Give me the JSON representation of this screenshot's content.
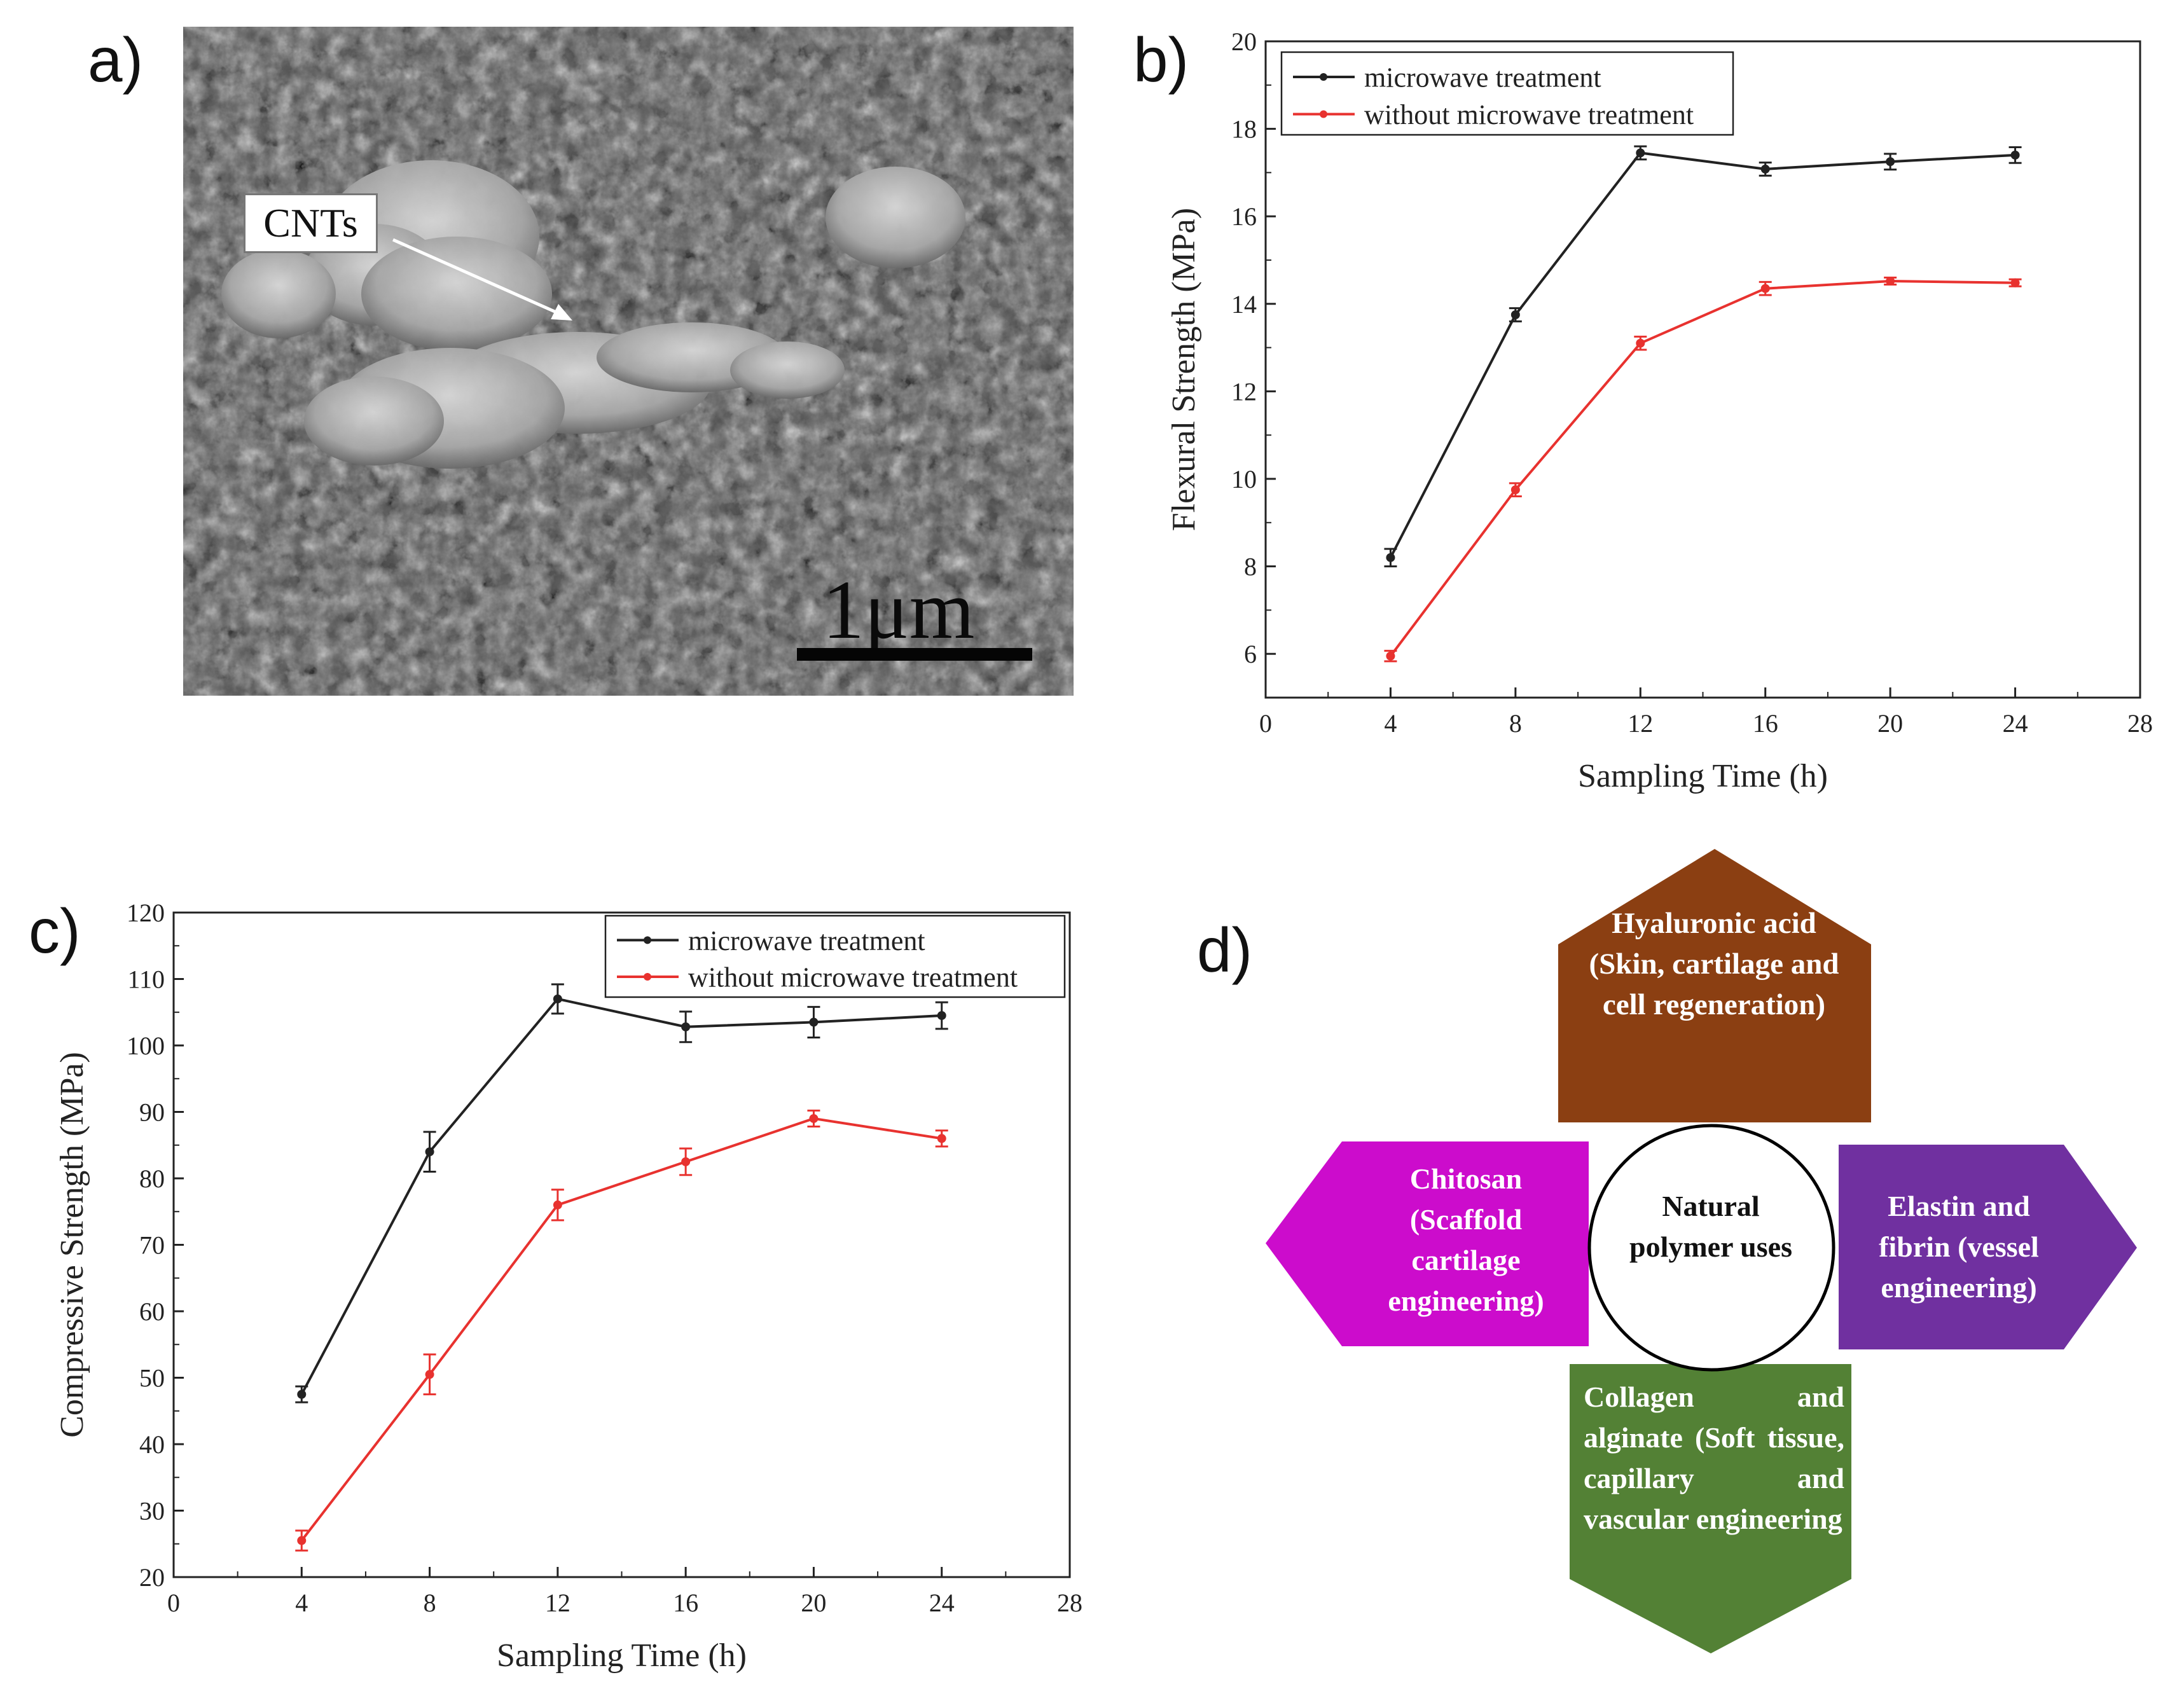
{
  "panel_labels": {
    "a": "a)",
    "b": "b)",
    "c": "c)",
    "d": "d)"
  },
  "sem": {
    "annotation": "CNTs",
    "scale_bar_label": "1μm"
  },
  "chart_data": [
    {
      "id": "b",
      "type": "line",
      "xlabel": "Sampling Time (h)",
      "ylabel": "Flexural Strength (MPa)",
      "xlim": [
        0,
        28
      ],
      "ylim": [
        5,
        20
      ],
      "xticks": [
        0,
        4,
        8,
        12,
        16,
        20,
        24,
        28
      ],
      "yticks": [
        6,
        8,
        10,
        12,
        14,
        16,
        18,
        20
      ],
      "x": [
        4,
        8,
        12,
        16,
        20,
        24
      ],
      "legend": "top-left",
      "series": [
        {
          "name": "microwave treatment",
          "color": "#222222",
          "values": [
            8.2,
            13.75,
            17.45,
            17.08,
            17.25,
            17.4
          ],
          "errors": [
            0.2,
            0.15,
            0.15,
            0.15,
            0.18,
            0.18
          ]
        },
        {
          "name": "without microwave treatment",
          "color": "#e8322f",
          "values": [
            5.95,
            9.75,
            13.1,
            14.35,
            14.52,
            14.48
          ],
          "errors": [
            0.12,
            0.15,
            0.15,
            0.15,
            0.08,
            0.08
          ]
        }
      ]
    },
    {
      "id": "c",
      "type": "line",
      "xlabel": "Sampling Time (h)",
      "ylabel": "Compressive Strength (MPa)",
      "xlim": [
        0,
        28
      ],
      "ylim": [
        20,
        120
      ],
      "xticks": [
        0,
        4,
        8,
        12,
        16,
        20,
        24,
        28
      ],
      "yticks": [
        20,
        30,
        40,
        50,
        60,
        70,
        80,
        90,
        100,
        110,
        120
      ],
      "x": [
        4,
        8,
        12,
        16,
        20,
        24
      ],
      "legend": "top-right",
      "series": [
        {
          "name": "microwave treatment",
          "color": "#222222",
          "values": [
            47.5,
            84,
            107,
            102.8,
            103.5,
            104.5
          ],
          "errors": [
            1.2,
            3,
            2.2,
            2.3,
            2.3,
            2
          ]
        },
        {
          "name": "without microwave treatment",
          "color": "#e8322f",
          "values": [
            25.5,
            50.5,
            76,
            82.5,
            89,
            86
          ],
          "errors": [
            1.5,
            3,
            2.3,
            2,
            1.2,
            1.2
          ]
        }
      ]
    }
  ],
  "diagram": {
    "center": "Natural polymer uses",
    "top": {
      "text": "Hyaluronic acid (Skin, cartilage and cell regeneration)",
      "color": "#8b3f12"
    },
    "left": {
      "text": "Chitosan (Scaffold cartilage engineering)",
      "color": "#cc0ccc"
    },
    "right": {
      "text": "Elastin and fibrin (vessel engineering)",
      "color": "#7030a0"
    },
    "bottom": {
      "text": "Collagen and alginate (Soft tissue, capillary and vascular engineering",
      "color": "#538135"
    }
  }
}
